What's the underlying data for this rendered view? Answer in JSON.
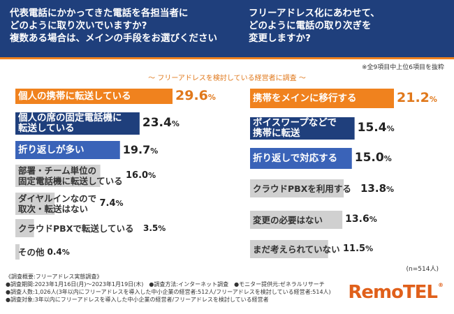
{
  "header": {
    "left_question": [
      "代表電話にかかってきた電話を各担当者に",
      "どのように取り次いでいますか?",
      "複数ある場合は、メインの手段をお選びください"
    ],
    "right_question": [
      "フリーアドレス化にあわせて、",
      "どのように電話の取り次ぎを",
      "変更しますか?"
    ]
  },
  "note_top": "※全9項目中上位6項目を抜粋",
  "subtitle": "～ フリーアドレスを検討している経営者に調査 ～",
  "n_note": "(n=514人)",
  "footnotes": [
    "《調査概要:フリーアドレス実態調査》",
    "●調査期間:2023年1月16日(月)〜2023年1月19日(木)　●調査方法:インターネット調査　●モニター提供元:ゼネラルリサーチ",
    "●調査人数:1,026人(3年以内にフリーアドレスを導入した中小企業の経営者:512人/フリーアドレスを検討している経営者:514人)",
    "●調査対象:3年以内にフリーアドレスを導入した中小企業の経営者/フリーアドレスを検討している経営者"
  ],
  "logo": "RemoTEL",
  "logo_mark": "®",
  "colors": {
    "header": "#1f3f7c",
    "orange": "#f0821e",
    "navy": "#1f3f7c",
    "blue": "#3a63b8",
    "gray": "#d0d0d0"
  },
  "chart_data": [
    {
      "type": "bar",
      "orientation": "horizontal",
      "categories": [
        "個人の携帯に転送している",
        "個人の席の固定電話機に転送している",
        "折り返しが多い",
        "部署・チーム単位の固定電話機に転送している",
        "ダイヤルインなので取次・転送はない",
        "クラウドPBXで転送している",
        "その他"
      ],
      "labels": [
        [
          "個人の携帯に転送している"
        ],
        [
          "個人の席の固定電話機に",
          "転送している"
        ],
        [
          "折り返しが多い"
        ],
        [
          "部署・チーム単位の",
          "固定電話機に転送している"
        ],
        [
          "ダイヤルインなので",
          "取次・転送はない"
        ],
        [
          "クラウドPBXで転送している"
        ],
        [
          "その他"
        ]
      ],
      "values": [
        29.6,
        23.4,
        19.7,
        16.0,
        7.4,
        3.5,
        0.4
      ],
      "value_labels": [
        "29.6",
        "23.4",
        "19.7",
        "16.0",
        "7.4",
        "3.5",
        "0.4"
      ],
      "unit": "%"
    },
    {
      "type": "bar",
      "orientation": "horizontal",
      "categories": [
        "携帯をメインに移行する",
        "ボイスワープなどで携帯に転送",
        "折り返しで対応する",
        "クラウドPBXを利用する",
        "変更の必要はない",
        "まだ考えられていない"
      ],
      "labels": [
        [
          "携帯をメインに移行する"
        ],
        [
          "ボイスワープなどで",
          "携帯に転送"
        ],
        [
          "折り返しで対応する"
        ],
        [
          "クラウドPBXを利用する"
        ],
        [
          "変更の必要はない"
        ],
        [
          "まだ考えられていない"
        ]
      ],
      "values": [
        21.2,
        15.4,
        15.0,
        13.8,
        13.6,
        11.5
      ],
      "value_labels": [
        "21.2",
        "15.4",
        "15.0",
        "13.8",
        "13.6",
        "11.5"
      ],
      "unit": "%"
    }
  ]
}
